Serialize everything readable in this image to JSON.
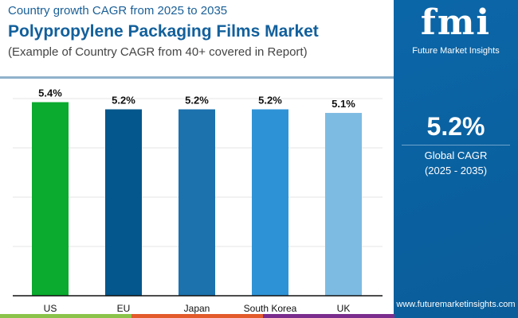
{
  "header": {
    "subtitle": "Country growth CAGR from 2025 to 2035",
    "title": "Polypropylene Packaging Films Market",
    "note": "(Example of Country CAGR from 40+ covered in Report)"
  },
  "side": {
    "logo_text": "fmi",
    "brand": "Future Market Insights",
    "value": "5.2%",
    "label1": "Global CAGR",
    "label2": "(2025 - 2035)",
    "url": "www.futuremarketinsights.com"
  },
  "chart_data": {
    "type": "bar",
    "title": "Polypropylene Packaging Films Market",
    "categories": [
      "US",
      "EU",
      "Japan",
      "South Korea",
      "UK"
    ],
    "values": [
      5.4,
      5.2,
      5.2,
      5.2,
      5.1
    ],
    "labels": [
      "5.4%",
      "5.2%",
      "5.2%",
      "5.2%",
      "5.1%"
    ],
    "colors": [
      "#0aab2e",
      "#03578c",
      "#1b72ad",
      "#2e93d6",
      "#7dbbe2"
    ],
    "ylim": [
      0,
      5.5
    ],
    "xlabel": "",
    "ylabel": "",
    "grid": true
  }
}
